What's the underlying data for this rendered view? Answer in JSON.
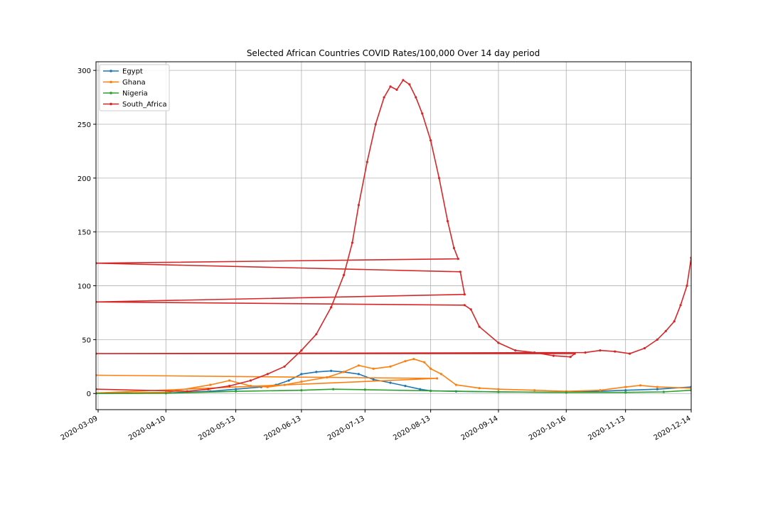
{
  "chart_data": {
    "type": "line",
    "title": "Selected African Countries COVID Rates/100,000 Over 14 day period",
    "xlabel": "",
    "ylabel": "",
    "xlim": [
      "2020-03-08",
      "2020-12-14"
    ],
    "ylim": [
      -15,
      308
    ],
    "x_ticks": [
      "2020-03-09",
      "2020-04-10",
      "2020-05-13",
      "2020-06-13",
      "2020-07-13",
      "2020-08-13",
      "2020-09-14",
      "2020-10-16",
      "2020-11-13",
      "2020-12-14"
    ],
    "y_ticks": [
      0,
      50,
      100,
      150,
      200,
      250,
      300
    ],
    "grid": true,
    "legend_position": "top-left",
    "series": [
      {
        "name": "Egypt",
        "color": "#1f77b4",
        "points": [
          [
            "2020-03-08",
            0
          ],
          [
            "2020-04-10",
            0.5
          ],
          [
            "2020-05-01",
            2
          ],
          [
            "2020-05-13",
            4
          ],
          [
            "2020-05-25",
            6
          ],
          [
            "2020-06-01",
            8
          ],
          [
            "2020-06-07",
            12
          ],
          [
            "2020-06-13",
            18
          ],
          [
            "2020-06-20",
            20
          ],
          [
            "2020-06-27",
            21
          ],
          [
            "2020-07-03",
            20
          ],
          [
            "2020-07-10",
            18
          ],
          [
            "2020-07-17",
            13
          ],
          [
            "2020-07-25",
            10
          ],
          [
            "2020-08-01",
            7
          ],
          [
            "2020-08-08",
            4
          ],
          [
            "2020-08-13",
            2.5
          ],
          [
            "2020-08-25",
            2
          ],
          [
            "2020-09-14",
            1.5
          ],
          [
            "2020-10-16",
            1
          ],
          [
            "2020-11-13",
            3
          ],
          [
            "2020-11-28",
            4
          ],
          [
            "2020-12-14",
            6
          ]
        ]
      },
      {
        "name": "Ghana",
        "color": "#ff7f0e",
        "points": [
          [
            "2020-03-08",
            17
          ],
          [
            "2020-08-16",
            14
          ],
          [
            "2020-03-08",
            0.5
          ],
          [
            "2020-04-10",
            1
          ],
          [
            "2020-05-01",
            8
          ],
          [
            "2020-05-10",
            12
          ],
          [
            "2020-05-20",
            7
          ],
          [
            "2020-05-28",
            6
          ],
          [
            "2020-06-05",
            8
          ],
          [
            "2020-06-13",
            11
          ],
          [
            "2020-06-25",
            15
          ],
          [
            "2020-07-03",
            20
          ],
          [
            "2020-07-10",
            26
          ],
          [
            "2020-07-17",
            23
          ],
          [
            "2020-07-25",
            25
          ],
          [
            "2020-08-01",
            30
          ],
          [
            "2020-08-05",
            32
          ],
          [
            "2020-08-10",
            29
          ],
          [
            "2020-08-13",
            23
          ],
          [
            "2020-08-18",
            18
          ],
          [
            "2020-08-25",
            8
          ],
          [
            "2020-09-05",
            5
          ],
          [
            "2020-09-14",
            4
          ],
          [
            "2020-10-01",
            3
          ],
          [
            "2020-10-16",
            2
          ],
          [
            "2020-11-01",
            3
          ],
          [
            "2020-11-13",
            6
          ],
          [
            "2020-11-20",
            7.5
          ],
          [
            "2020-11-28",
            6
          ],
          [
            "2020-12-14",
            5
          ]
        ]
      },
      {
        "name": "Nigeria",
        "color": "#2ca02c",
        "points": [
          [
            "2020-03-08",
            0
          ],
          [
            "2020-04-10",
            0.2
          ],
          [
            "2020-05-13",
            2
          ],
          [
            "2020-06-13",
            3
          ],
          [
            "2020-06-28",
            4
          ],
          [
            "2020-07-13",
            3.5
          ],
          [
            "2020-08-13",
            2.5
          ],
          [
            "2020-09-14",
            1.5
          ],
          [
            "2020-10-16",
            1
          ],
          [
            "2020-11-13",
            1
          ],
          [
            "2020-12-01",
            1.5
          ],
          [
            "2020-12-14",
            3
          ]
        ]
      },
      {
        "name": "South_Africa",
        "color": "#d62728",
        "points": [
          [
            "2020-03-08",
            4
          ],
          [
            "2020-04-20",
            2
          ],
          [
            "2020-04-30",
            4
          ],
          [
            "2020-05-10",
            7
          ],
          [
            "2020-05-20",
            12
          ],
          [
            "2020-05-28",
            18
          ],
          [
            "2020-06-05",
            25
          ],
          [
            "2020-06-13",
            40
          ],
          [
            "2020-06-20",
            55
          ],
          [
            "2020-06-27",
            80
          ],
          [
            "2020-07-03",
            110
          ],
          [
            "2020-07-07",
            140
          ],
          [
            "2020-07-10",
            175
          ],
          [
            "2020-07-14",
            215
          ],
          [
            "2020-07-18",
            250
          ],
          [
            "2020-07-22",
            275
          ],
          [
            "2020-07-25",
            285
          ],
          [
            "2020-07-28",
            282
          ],
          [
            "2020-07-31",
            291
          ],
          [
            "2020-08-03",
            287
          ],
          [
            "2020-08-06",
            275
          ],
          [
            "2020-08-09",
            260
          ],
          [
            "2020-08-13",
            235
          ],
          [
            "2020-08-17",
            200
          ],
          [
            "2020-08-21",
            160
          ],
          [
            "2020-08-24",
            135
          ],
          [
            "2020-08-26",
            125
          ],
          [
            "2020-03-08",
            121
          ],
          [
            "2020-08-27",
            113
          ],
          [
            "2020-08-29",
            92
          ],
          [
            "2020-03-08",
            85
          ],
          [
            "2020-08-29",
            82
          ],
          [
            "2020-09-01",
            78
          ],
          [
            "2020-09-05",
            62
          ],
          [
            "2020-09-14",
            47
          ],
          [
            "2020-09-22",
            40
          ],
          [
            "2020-10-01",
            38
          ],
          [
            "2020-10-10",
            35
          ],
          [
            "2020-10-18",
            34
          ],
          [
            "2020-10-20",
            37
          ],
          [
            "2020-03-08",
            37
          ],
          [
            "2020-10-25",
            38
          ],
          [
            "2020-11-01",
            40
          ],
          [
            "2020-11-08",
            39
          ],
          [
            "2020-11-15",
            37
          ],
          [
            "2020-11-22",
            42
          ],
          [
            "2020-11-28",
            50
          ],
          [
            "2020-12-02",
            58
          ],
          [
            "2020-12-06",
            67
          ],
          [
            "2020-12-09",
            82
          ],
          [
            "2020-12-12",
            100
          ],
          [
            "2020-12-14",
            126
          ]
        ]
      }
    ]
  }
}
